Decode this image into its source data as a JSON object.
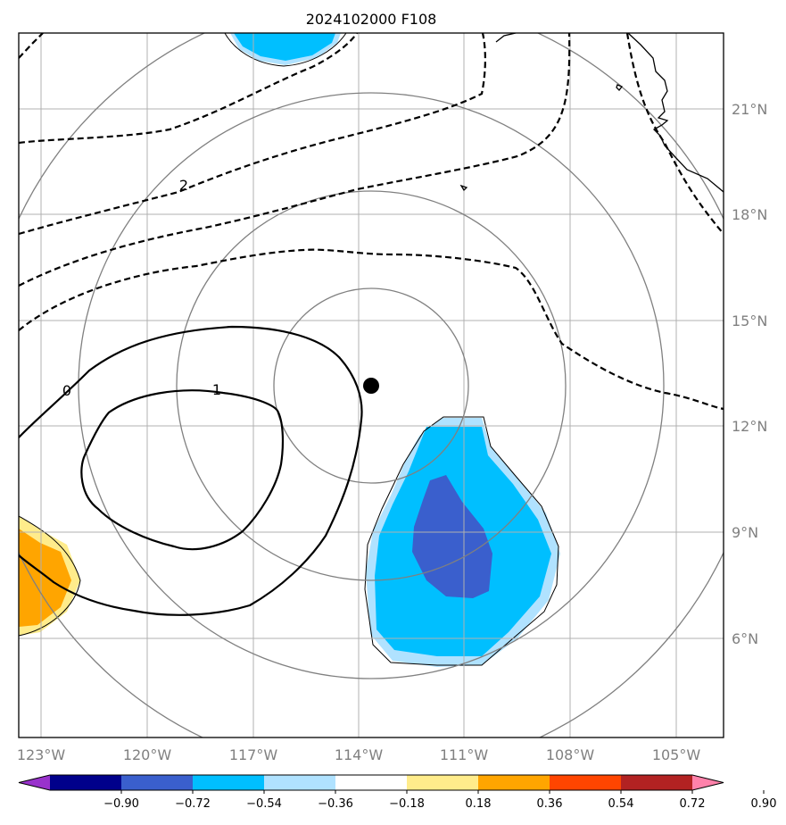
{
  "chart_data": {
    "type": "heatmap",
    "title": "2024102000 F108",
    "projection": "map",
    "lon_range": [
      -124.0,
      -103.0
    ],
    "lat_range": [
      3.5,
      23.0
    ],
    "x_ticks": [
      {
        "value": -123,
        "label": "123°W"
      },
      {
        "value": -120,
        "label": "120°W"
      },
      {
        "value": -117,
        "label": "117°W"
      },
      {
        "value": -114,
        "label": "114°W"
      },
      {
        "value": -111,
        "label": "111°W"
      },
      {
        "value": -108,
        "label": "108°W"
      },
      {
        "value": -105,
        "label": "105°W"
      }
    ],
    "y_ticks": [
      {
        "value": 6,
        "label": "6°N"
      },
      {
        "value": 9,
        "label": "9°N"
      },
      {
        "value": 12,
        "label": "12°N"
      },
      {
        "value": 15,
        "label": "15°N"
      },
      {
        "value": 18,
        "label": "18°N"
      },
      {
        "value": 21,
        "label": "21°N"
      }
    ],
    "grid": true,
    "storm_center": {
      "lon": -113.7,
      "lat": 13.1
    },
    "range_rings_deg": [
      2.75,
      5.5,
      8.25,
      11.0
    ],
    "contour_labels": [
      {
        "text": "0",
        "lon": -121.7,
        "lat": 12.0
      },
      {
        "text": "1",
        "lon": -117.0,
        "lat": 13.0
      },
      {
        "text": "2",
        "lon": -118.5,
        "lat": 18.8
      }
    ],
    "colorbar": {
      "levels": [
        -0.9,
        -0.72,
        -0.54,
        -0.36,
        -0.18,
        0.18,
        0.36,
        0.54,
        0.72,
        0.9
      ],
      "tick_labels": [
        "−0.90",
        "−0.72",
        "−0.54",
        "−0.36",
        "−0.18",
        "0.18",
        "0.36",
        "0.54",
        "0.72",
        "0.90"
      ],
      "colors": [
        "#9932cc",
        "#00008b",
        "#3a5fcd",
        "#00bfff",
        "#b0e2ff",
        "#ffffff",
        "#ffec8b",
        "#ffa500",
        "#ff4500",
        "#b22222",
        "#ff82ab"
      ],
      "extend": "both"
    }
  }
}
